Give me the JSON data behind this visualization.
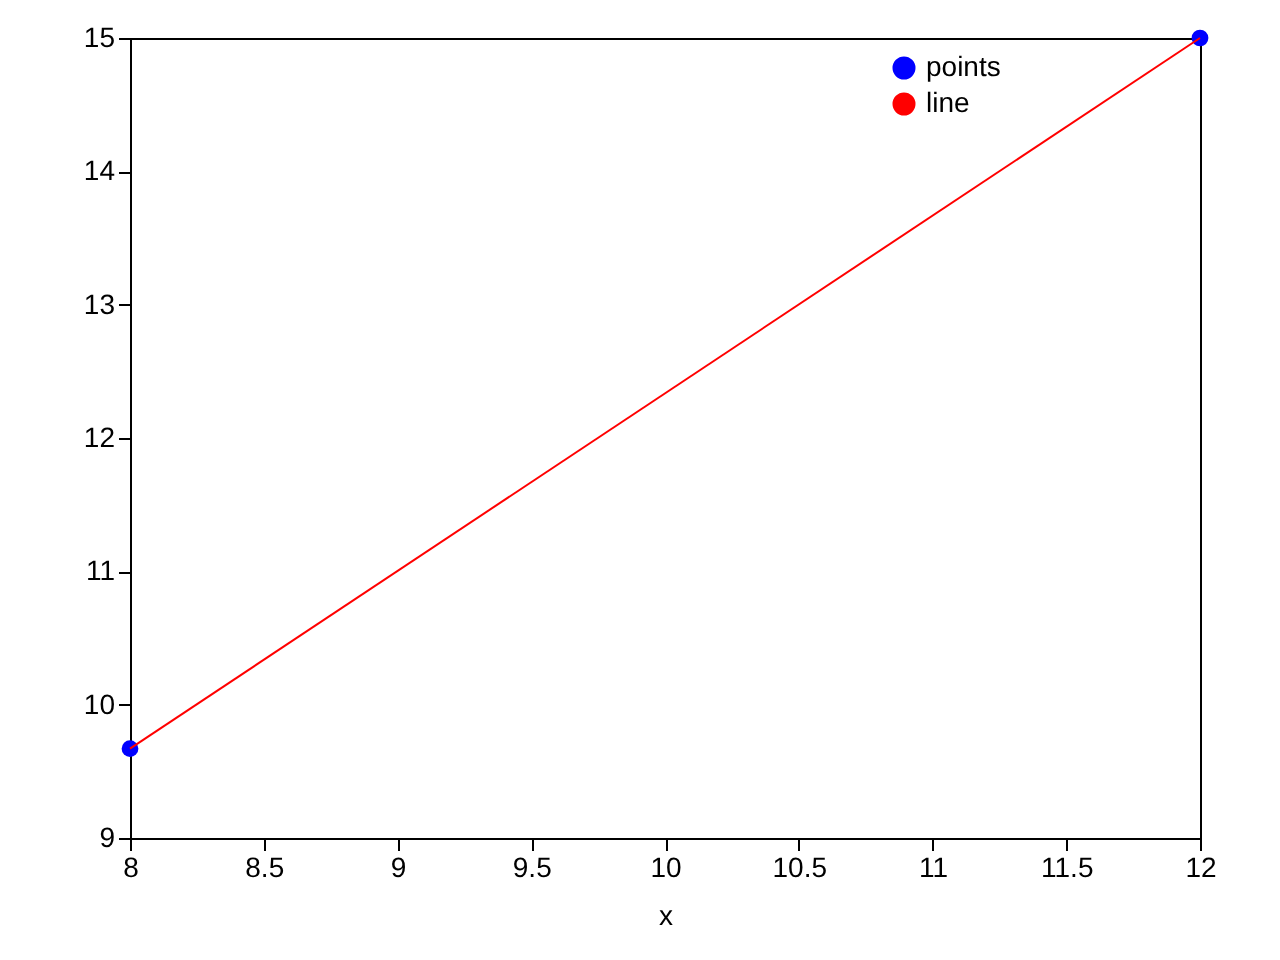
{
  "chart_data": {
    "type": "line",
    "xlabel": "x",
    "xlim": [
      8,
      12
    ],
    "xticks": [
      8,
      8.5,
      9,
      9.5,
      10,
      10.5,
      11,
      11.5,
      12
    ],
    "ylim": [
      9,
      15
    ],
    "yticks": [
      9,
      10,
      11,
      12,
      13,
      14,
      15
    ],
    "x": [
      8,
      12
    ],
    "grid": false,
    "legend": "top right",
    "line_style": "solid",
    "series": [
      {
        "name": "points",
        "type": "scatter",
        "marker": "circle",
        "color": "#0000ff",
        "values": [
          9.67,
          15
        ]
      },
      {
        "name": "line",
        "marker": "none",
        "color": "#ff0000",
        "values": [
          9.67,
          15
        ]
      }
    ]
  }
}
